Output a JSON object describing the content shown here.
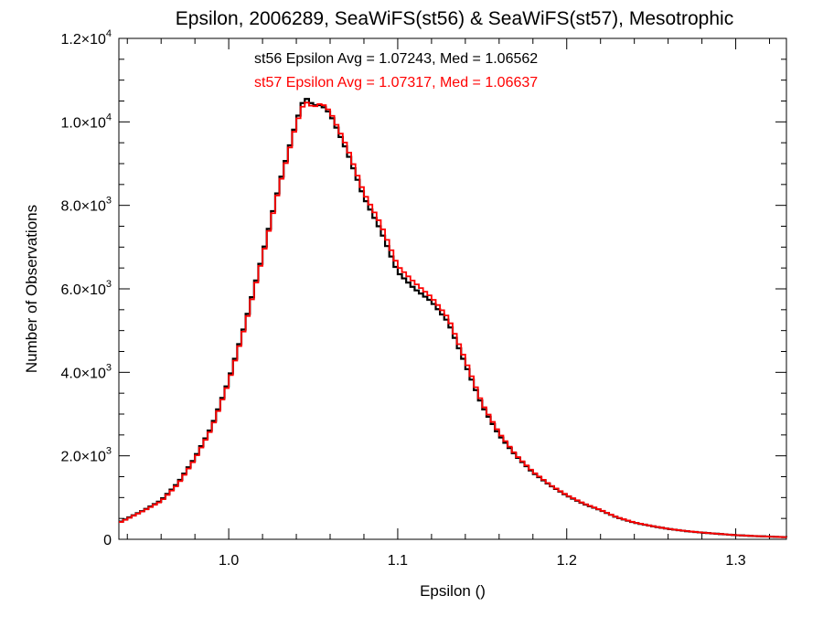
{
  "chart_data": {
    "type": "line",
    "title": "Epsilon, 2006289, SeaWiFS(st56) & SeaWiFS(st57), Mesotrophic",
    "xlabel": "Epsilon ()",
    "ylabel": "Number of Observations",
    "xlim": [
      0.935,
      1.33
    ],
    "ylim": [
      0,
      12000
    ],
    "x_ticks": [
      1.0,
      1.1,
      1.2,
      1.3
    ],
    "x_tick_labels": [
      "1.0",
      "1.1",
      "1.2",
      "1.3"
    ],
    "y_ticks": [
      0,
      2000,
      4000,
      6000,
      8000,
      10000,
      12000
    ],
    "y_tick_labels": [
      {
        "mantissa": "0",
        "exp": ""
      },
      {
        "mantissa": "2.0×10",
        "exp": "3"
      },
      {
        "mantissa": "4.0×10",
        "exp": "3"
      },
      {
        "mantissa": "6.0×10",
        "exp": "3"
      },
      {
        "mantissa": "8.0×10",
        "exp": "3"
      },
      {
        "mantissa": "1.0×10",
        "exp": "4"
      },
      {
        "mantissa": "1.2×10",
        "exp": "4"
      }
    ],
    "annotations": [
      {
        "text": "st56 Epsilon Avg = 1.07243, Med = 1.06562",
        "color": "#000000"
      },
      {
        "text": "st57 Epsilon Avg = 1.07317, Med = 1.06637",
        "color": "#ff0000"
      }
    ],
    "style": "histogram-step",
    "x": [
      0.935,
      0.95,
      0.96,
      0.97,
      0.98,
      0.99,
      1.0,
      1.01,
      1.02,
      1.03,
      1.04,
      1.045,
      1.05,
      1.055,
      1.06,
      1.07,
      1.08,
      1.09,
      1.1,
      1.11,
      1.12,
      1.13,
      1.14,
      1.15,
      1.16,
      1.17,
      1.18,
      1.19,
      1.2,
      1.21,
      1.22,
      1.23,
      1.24,
      1.25,
      1.26,
      1.27,
      1.28,
      1.29,
      1.3,
      1.31,
      1.33
    ],
    "series": [
      {
        "name": "st56",
        "color": "#000000",
        "values": [
          400,
          700,
          930,
          1350,
          1950,
          2700,
          3800,
          5200,
          6800,
          8500,
          10000,
          10600,
          10400,
          10400,
          10200,
          9300,
          8200,
          7400,
          6400,
          6000,
          5700,
          5200,
          4200,
          3200,
          2500,
          2000,
          1600,
          1300,
          1050,
          850,
          700,
          520,
          400,
          320,
          250,
          200,
          160,
          130,
          100,
          80,
          50
        ]
      },
      {
        "name": "st57",
        "color": "#ff0000",
        "values": [
          390,
          690,
          910,
          1320,
          1920,
          2660,
          3760,
          5150,
          6750,
          8450,
          9950,
          10500,
          10350,
          10450,
          10250,
          9400,
          8300,
          7550,
          6550,
          6150,
          5800,
          5300,
          4300,
          3250,
          2550,
          2020,
          1620,
          1310,
          1060,
          860,
          705,
          525,
          405,
          322,
          252,
          202,
          162,
          131,
          101,
          81,
          50
        ]
      }
    ]
  }
}
